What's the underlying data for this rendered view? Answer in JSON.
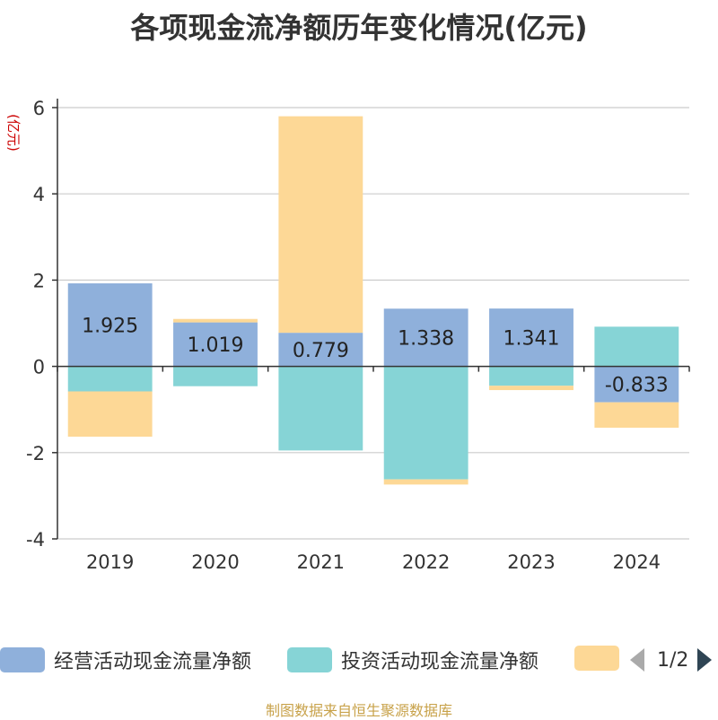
{
  "chart_data": {
    "type": "bar",
    "stacked": true,
    "title": "各项现金流净额历年变化情况(亿元)",
    "ylabel": "(亿元)",
    "categories": [
      "2019",
      "2020",
      "2021",
      "2022",
      "2023",
      "2024"
    ],
    "ylim": [
      -4,
      6
    ],
    "yticks": [
      -4,
      -2,
      0,
      2,
      4,
      6
    ],
    "grid": true,
    "series": [
      {
        "name": "经营活动现金流量净额",
        "color": "#8fb0db",
        "values": [
          1.925,
          1.019,
          0.779,
          1.338,
          1.341,
          -0.833
        ],
        "labels": [
          "1.925",
          "1.019",
          "0.779",
          "1.338",
          "1.341",
          "-0.833"
        ]
      },
      {
        "name": "投资活动现金流量净额",
        "color": "#86d4d6",
        "values": [
          -0.58,
          -0.46,
          -1.95,
          -2.62,
          -0.45,
          0.92
        ]
      },
      {
        "name": "",
        "color": "#fdd896",
        "values": [
          -1.05,
          0.08,
          5.02,
          -0.12,
          -0.1,
          -0.59
        ]
      }
    ]
  },
  "legend": {
    "page": "1/2"
  },
  "source": "制图数据来自恒生聚源数据库"
}
